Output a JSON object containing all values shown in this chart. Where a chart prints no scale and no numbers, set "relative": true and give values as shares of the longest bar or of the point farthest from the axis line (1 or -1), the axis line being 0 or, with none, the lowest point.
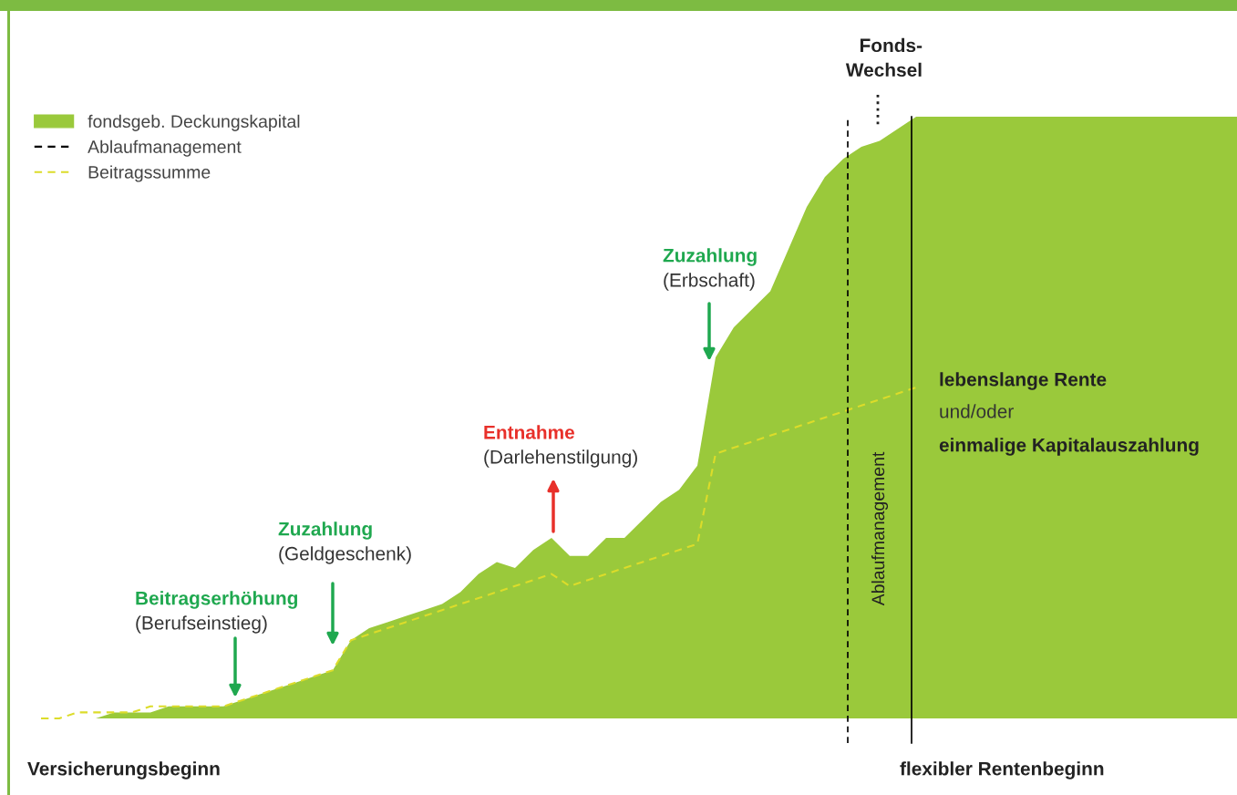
{
  "chart_data": {
    "type": "area",
    "relative": true,
    "legend": "top left",
    "categories": [
      null,
      null,
      null,
      null,
      null,
      null,
      null,
      null,
      null,
      null,
      null,
      null,
      null,
      null,
      null,
      null,
      null,
      null,
      null,
      null,
      null,
      null,
      null,
      null,
      null,
      null,
      null,
      null,
      null,
      null,
      null,
      null,
      null,
      null,
      null,
      null,
      null,
      null,
      null,
      null,
      null,
      null,
      null,
      null,
      null,
      null,
      null,
      null,
      null,
      null,
      null,
      null,
      null,
      null,
      null,
      null,
      null,
      null,
      null,
      null,
      null,
      null,
      null,
      null,
      null,
      null,
      null
    ],
    "series": [
      {
        "name": "fondsgeb. Deckungskapital",
        "color": "#9ac93b",
        "values": [
          0,
          0,
          0,
          0,
          0.01,
          0.01,
          0.01,
          0.02,
          0.02,
          0.02,
          0.02,
          0.03,
          0.04,
          0.05,
          0.06,
          0.07,
          0.08,
          0.13,
          0.15,
          0.16,
          0.17,
          0.18,
          0.19,
          0.21,
          0.24,
          0.26,
          0.25,
          0.28,
          0.3,
          0.27,
          0.27,
          0.3,
          0.3,
          0.33,
          0.36,
          0.38,
          0.42,
          0.6,
          0.65,
          0.68,
          0.71,
          0.78,
          0.85,
          0.9,
          0.93,
          0.95,
          0.96,
          0.98,
          1,
          1,
          1,
          1,
          1,
          1,
          1,
          1,
          1,
          1,
          1,
          1,
          1,
          1,
          1,
          1,
          1,
          1,
          1
        ]
      },
      {
        "name": "Beitragssumme",
        "type": "line",
        "line_style": "dashed",
        "color": "#dcdc2a",
        "values": [
          0,
          0,
          0.01,
          0.01,
          0.01,
          0.01,
          0.02,
          0.02,
          0.02,
          0.02,
          0.02,
          0.03,
          0.04,
          0.05,
          0.06,
          0.07,
          0.08,
          0.13,
          0.14,
          0.15,
          0.16,
          0.17,
          0.18,
          0.19,
          0.2,
          0.21,
          0.22,
          0.23,
          0.24,
          0.22,
          0.23,
          0.24,
          0.25,
          0.26,
          0.27,
          0.28,
          0.29,
          0.44,
          0.45,
          0.46,
          0.47,
          0.48,
          0.49,
          0.5,
          0.51,
          0.52,
          0.53,
          0.54,
          0.55,
          null,
          null,
          null,
          null,
          null,
          null,
          null,
          null,
          null,
          null,
          null,
          null,
          null,
          null,
          null,
          null,
          null,
          null
        ]
      }
    ],
    "annotations": [
      "Beitragserhöhung",
      "(Berufseinstieg)",
      "Zuzahlung",
      "(Geldgeschenk)",
      "Entnahme",
      "(Darlehenstilgung)",
      "Zuzahlung",
      "(Erbschaft)",
      "Fonds-\nWechsel",
      "lebenslange Rente",
      "und/oder",
      "einmalige Kapitalauszahlung",
      "Versicherungsbeginn",
      "flexibler Rentenbeginn",
      "Ablaufmanagement",
      "Ablaufmanagement"
    ]
  }
}
